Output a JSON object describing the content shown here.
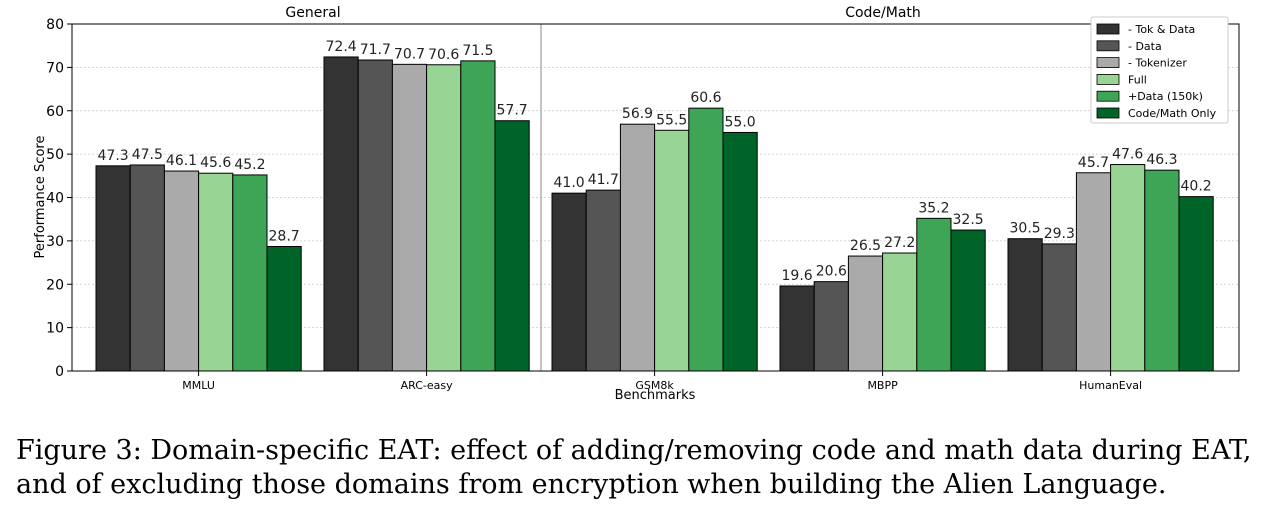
{
  "chart_data": {
    "type": "bar",
    "title": "",
    "group_titles": [
      "General",
      "Code/Math"
    ],
    "xlabel": "Benchmarks",
    "ylabel": "Performance Score",
    "ylim": [
      0,
      80
    ],
    "yticks": [
      0,
      10,
      20,
      30,
      40,
      50,
      60,
      70,
      80
    ],
    "grid": true,
    "legend_position": "top-right",
    "categories": [
      "MMLU",
      "ARC-easy",
      "GSM8k",
      "MBPP",
      "HumanEval"
    ],
    "series": [
      {
        "name": "- Tok & Data",
        "color": "#333333",
        "values": [
          47.3,
          72.4,
          41.0,
          19.6,
          30.5
        ]
      },
      {
        "name": "- Data",
        "color": "#555555",
        "values": [
          47.5,
          71.7,
          41.7,
          20.6,
          29.3
        ]
      },
      {
        "name": "- Tokenizer",
        "color": "#aaaaaa",
        "values": [
          46.1,
          70.7,
          56.9,
          26.5,
          45.7
        ]
      },
      {
        "name": "Full",
        "color": "#98d594",
        "values": [
          45.6,
          70.6,
          55.5,
          27.2,
          47.6
        ]
      },
      {
        "name": "+Data (150k)",
        "color": "#3fa556",
        "values": [
          45.2,
          71.5,
          60.6,
          35.2,
          46.3
        ]
      },
      {
        "name": "Code/Math Only",
        "color": "#006428",
        "values": [
          28.7,
          57.7,
          55.0,
          32.5,
          40.2
        ]
      }
    ]
  },
  "caption": "Figure 3: Domain-specific EAT: effect of adding/removing code and math data during EAT, and of excluding those domains from encryption when building the Alien Language."
}
